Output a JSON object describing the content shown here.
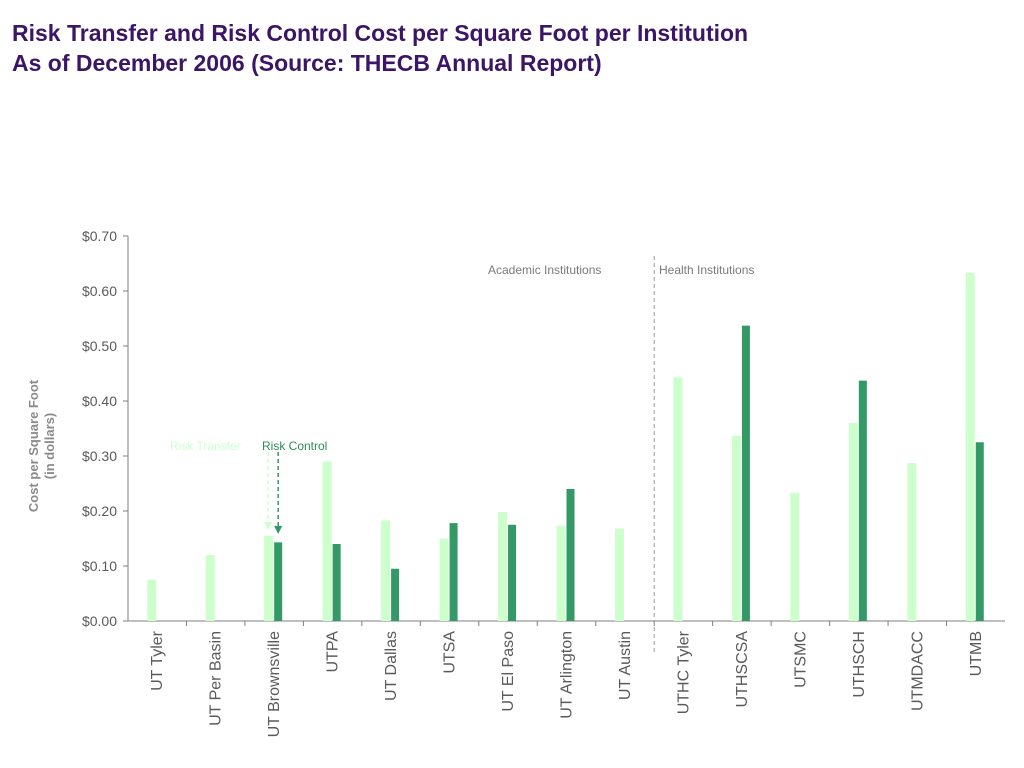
{
  "title_line1": "Risk Transfer and Risk Control Cost per Square Foot per Institution",
  "title_line2": "As of December 2006 (Source: THECB Annual Report)",
  "colors": {
    "title": "#3b1566",
    "risk_transfer": "#ccffcc",
    "risk_control": "#339966",
    "axis": "#7f7f7f",
    "text": "#5a5a5a"
  },
  "chart_data": {
    "type": "bar",
    "ylabel_line1": "Cost per Square Foot",
    "ylabel_line2": "(in dollars)",
    "ylim": [
      0,
      0.7
    ],
    "ytick_step": 0.1,
    "ytick_labels": [
      "$0.00",
      "$0.10",
      "$0.20",
      "$0.30",
      "$0.40",
      "$0.50",
      "$0.60",
      "$0.70"
    ],
    "grid": false,
    "legend_placement": "inline-annotation",
    "categories": [
      "UT Tyler",
      "UT Per Basin",
      "UT Brownsville",
      "UTPA",
      "UT Dallas",
      "UTSA",
      "UT El Paso",
      "UT Arlington",
      "UT Austin",
      "UTHC Tyler",
      "UTHSCSA",
      "UTSMC",
      "UTHSCH",
      "UTMDACC",
      "UTMB"
    ],
    "series": [
      {
        "name": "Risk Transfer",
        "values": [
          0.075,
          0.12,
          0.155,
          0.29,
          0.183,
          0.15,
          0.198,
          0.173,
          0.168,
          0.443,
          0.337,
          0.233,
          0.36,
          0.287,
          0.633
        ]
      },
      {
        "name": "Risk Control",
        "values": [
          null,
          null,
          0.143,
          0.14,
          0.095,
          0.178,
          0.175,
          0.24,
          null,
          null,
          0.537,
          null,
          0.437,
          null,
          0.325
        ]
      }
    ],
    "groups": [
      "Academic Institutions",
      "Health Institutions"
    ]
  }
}
